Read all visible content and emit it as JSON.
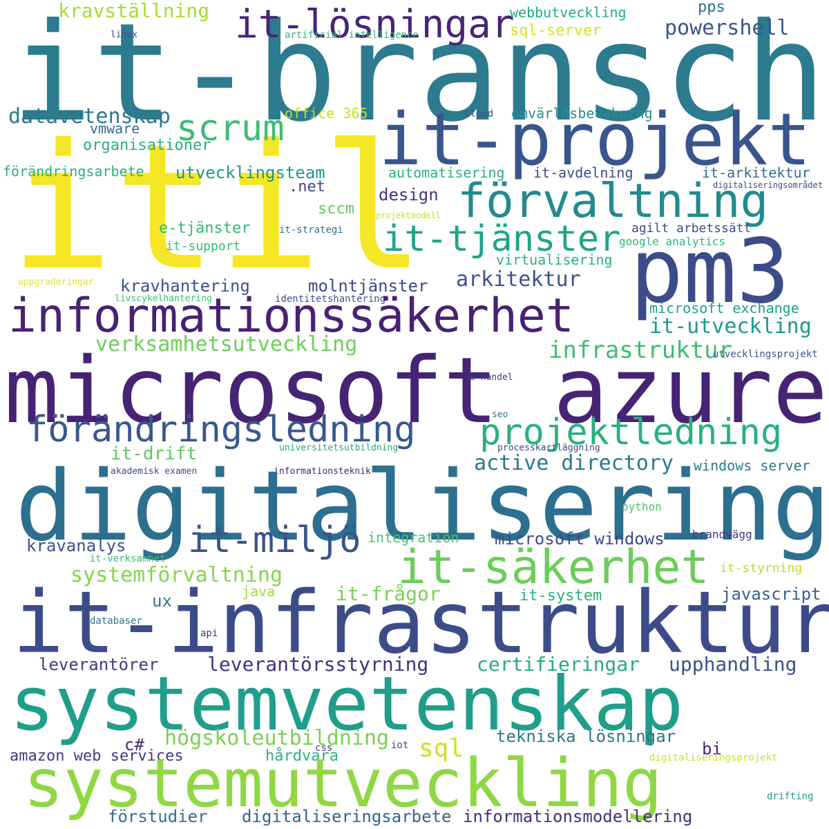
{
  "words": [
    {
      "id": "w0",
      "text": "it-branschen",
      "color": "#2c7b8e"
    },
    {
      "id": "w1",
      "text": "itil",
      "color": "#f5e626"
    },
    {
      "id": "w2",
      "text": "it-projekt",
      "color": "#3a558b"
    },
    {
      "id": "w3",
      "text": "pm3",
      "color": "#3d4b89"
    },
    {
      "id": "w4",
      "text": "microsoft azure",
      "color": "#462474"
    },
    {
      "id": "w5",
      "text": "digitalisering",
      "color": "#2d6f8e"
    },
    {
      "id": "w6",
      "text": "it-infrastruktur",
      "color": "#3d4c89"
    },
    {
      "id": "w7",
      "text": "systemvetenskap",
      "color": "#1f9e89"
    },
    {
      "id": "w8",
      "text": "systemutveckling",
      "color": "#8fd744"
    },
    {
      "id": "w9",
      "text": "informationssäkerhet",
      "color": "#482173"
    },
    {
      "id": "w10",
      "text": "förvaltning",
      "color": "#238a8d"
    },
    {
      "id": "w11",
      "text": "it-tjänster",
      "color": "#20a486"
    },
    {
      "id": "w12",
      "text": "förändringsledning",
      "color": "#38588c"
    },
    {
      "id": "w13",
      "text": "projektledning",
      "color": "#2ab07f"
    },
    {
      "id": "w14",
      "text": "it-säkerhet",
      "color": "#6ccd5a"
    },
    {
      "id": "w15",
      "text": "it-miljö",
      "color": "#3a538b"
    },
    {
      "id": "w16",
      "text": "it-lösningar",
      "color": "#482475"
    },
    {
      "id": "w17",
      "text": "scrum",
      "color": "#3fbc73"
    },
    {
      "id": "w18",
      "text": "verksamhetsutveckling",
      "color": "#6ece58"
    },
    {
      "id": "w19",
      "text": "kravställning",
      "color": "#a8db34"
    },
    {
      "id": "w20",
      "text": "powershell",
      "color": "#39568c"
    },
    {
      "id": "w21",
      "text": "datavetenskap",
      "color": "#2a788e"
    },
    {
      "id": "w22",
      "text": "infrastruktur",
      "color": "#3fbc73"
    },
    {
      "id": "w23",
      "text": "it-utveckling",
      "color": "#1f988b"
    },
    {
      "id": "w24",
      "text": "arkitektur",
      "color": "#3b528b"
    },
    {
      "id": "w25",
      "text": "systemförvaltning",
      "color": "#86d549"
    },
    {
      "id": "w26",
      "text": "active directory",
      "color": "#2a788e"
    },
    {
      "id": "w27",
      "text": "it-frågor",
      "color": "#7ad151"
    },
    {
      "id": "w28",
      "text": "leverantörsstyrning",
      "color": "#46307e"
    },
    {
      "id": "w29",
      "text": "certifieringar",
      "color": "#25ab82"
    },
    {
      "id": "w30",
      "text": "upphandling",
      "color": "#3b528b"
    },
    {
      "id": "w31",
      "text": "högskoleutbildning",
      "color": "#7ad151"
    },
    {
      "id": "w32",
      "text": "sql",
      "color": "#d0e11c"
    },
    {
      "id": "w33",
      "text": "tekniska lösningar",
      "color": "#2a788e"
    },
    {
      "id": "w34",
      "text": "digitaliseringsarbete",
      "color": "#32658e"
    },
    {
      "id": "w35",
      "text": "informationsmodellering",
      "color": "#472d7b"
    },
    {
      "id": "w36",
      "text": "förstudier",
      "color": "#2c738e"
    },
    {
      "id": "w37",
      "text": "leverantörer",
      "color": "#453882"
    },
    {
      "id": "w38",
      "text": "kravanalys",
      "color": "#3b528b"
    },
    {
      "id": "w39",
      "text": "microsoft windows",
      "color": "#3f4889"
    },
    {
      "id": "w40",
      "text": "javascript",
      "color": "#32648e"
    },
    {
      "id": "w41",
      "text": "it-system",
      "color": "#2ab07f"
    },
    {
      "id": "w42",
      "text": "windows server",
      "color": "#2a788e"
    },
    {
      "id": "w43",
      "text": "kravhantering",
      "color": "#3b528b"
    },
    {
      "id": "w44",
      "text": "molntjänster",
      "color": "#3e4989"
    },
    {
      "id": "w45",
      "text": "it-drift",
      "color": "#5ec962"
    },
    {
      "id": "w46",
      "text": "organisationer",
      "color": "#29af7f"
    },
    {
      "id": "w47",
      "text": "utvecklingsteam",
      "color": "#1f958b"
    },
    {
      "id": "w48",
      "text": "design",
      "color": "#46327e"
    },
    {
      "id": "w49",
      "text": "vmware",
      "color": "#31688e"
    },
    {
      "id": "w50",
      "text": "sql-server",
      "color": "#d8e219"
    },
    {
      "id": "w51",
      "text": "omvärldsbevakning",
      "color": "#21918c"
    },
    {
      "id": "w52",
      "text": "virtualisering",
      "color": "#29af7f"
    },
    {
      "id": "w53",
      "text": "microsoft exchange",
      "color": "#1f9e89"
    },
    {
      "id": "w54",
      "text": "amazon web services",
      "color": "#443983"
    },
    {
      "id": "w55",
      "text": "hårdvara",
      "color": "#2db27d"
    },
    {
      "id": "w56",
      "text": "c#",
      "color": "#482878"
    },
    {
      "id": "w57",
      "text": "bi",
      "color": "#482475"
    },
    {
      "id": "w58",
      "text": "java",
      "color": "#9fda3a"
    },
    {
      "id": "w59",
      "text": "ux",
      "color": "#2a788e"
    },
    {
      "id": "w60",
      "text": "sccm",
      "color": "#5ec962"
    },
    {
      "id": "w61",
      "text": "integration",
      "color": "#4ac16d"
    },
    {
      "id": "w62",
      "text": "e-tjänster",
      "color": "#35b779"
    },
    {
      "id": "w63",
      "text": ".net",
      "color": "#3e4a89"
    },
    {
      "id": "w64",
      "text": "automatisering",
      "color": "#29af7f"
    },
    {
      "id": "w65",
      "text": "it-avdelning",
      "color": "#3e4c8a"
    },
    {
      "id": "w66",
      "text": "it-arkitektur",
      "color": "#2e6e8e"
    },
    {
      "id": "w67",
      "text": "förändringsarbete",
      "color": "#29af7f"
    },
    {
      "id": "w68",
      "text": "webbutveckling",
      "color": "#25ac82"
    },
    {
      "id": "w69",
      "text": "pps",
      "color": "#2d708e"
    },
    {
      "id": "w70",
      "text": "office 365",
      "color": "#c2df23"
    },
    {
      "id": "w71",
      "text": "it-support",
      "color": "#35b779"
    },
    {
      "id": "w72",
      "text": "agilt arbetssätt",
      "color": "#3d4e8a"
    },
    {
      "id": "w73",
      "text": "google analytics",
      "color": "#2fb47c"
    },
    {
      "id": "w74",
      "text": "identitetshantering",
      "color": "#3b528b"
    },
    {
      "id": "w75",
      "text": "it-styrning",
      "color": "#bade28"
    },
    {
      "id": "w76",
      "text": "python",
      "color": "#4ac16d"
    },
    {
      "id": "w77",
      "text": "brandvägg",
      "color": "#46337f"
    },
    {
      "id": "w78",
      "text": "artificial intelligence",
      "color": "#31b57b"
    },
    {
      "id": "w79",
      "text": "linux",
      "color": "#3e4c8a"
    },
    {
      "id": "w80",
      "text": "cloud",
      "color": "#3b528b"
    },
    {
      "id": "w81",
      "text": "digitaliseringsområdet",
      "color": "#3e4a89"
    },
    {
      "id": "w82",
      "text": "projektmodell",
      "color": "#c8e020"
    },
    {
      "id": "w83",
      "text": "it-strategi",
      "color": "#2c728e"
    },
    {
      "id": "w84",
      "text": "uppgraderingar",
      "color": "#e2e418"
    },
    {
      "id": "w85",
      "text": "livscykelhantering",
      "color": "#3bbb75"
    },
    {
      "id": "w86",
      "text": "utvecklingsprojekt",
      "color": "#39568c"
    },
    {
      "id": "w87",
      "text": "e-handel",
      "color": "#424086"
    },
    {
      "id": "w88",
      "text": "seo",
      "color": "#2c738e"
    },
    {
      "id": "w89",
      "text": "universitetsutbildning",
      "color": "#20a486"
    },
    {
      "id": "w90",
      "text": "processkartläggning",
      "color": "#3f4788"
    },
    {
      "id": "w91",
      "text": "akademisk examen",
      "color": "#3e4989"
    },
    {
      "id": "w92",
      "text": "informationsteknik",
      "color": "#482475"
    },
    {
      "id": "w93",
      "text": "it-verksamhet",
      "color": "#3bbb75"
    },
    {
      "id": "w94",
      "text": "databaser",
      "color": "#2a788e"
    },
    {
      "id": "w95",
      "text": "api",
      "color": "#46307e"
    },
    {
      "id": "w96",
      "text": "css",
      "color": "#443983"
    },
    {
      "id": "w97",
      "text": "iot",
      "color": "#3f4889"
    },
    {
      "id": "w98",
      "text": "digitaliseringsprojekt",
      "color": "#d2e21b"
    },
    {
      "id": "w99",
      "text": "drifting",
      "color": "#1fa088"
    }
  ]
}
